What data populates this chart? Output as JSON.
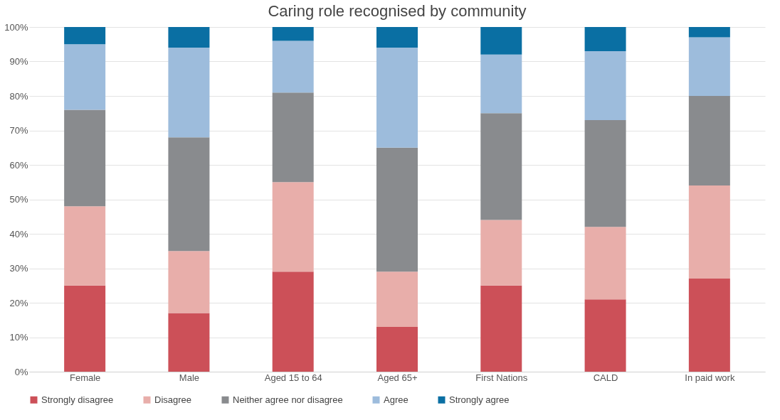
{
  "chart_data": {
    "type": "bar",
    "title": "Caring role recognised by community",
    "categories": [
      "Female",
      "Male",
      "Aged 15 to 64",
      "Aged 65+",
      "First Nations",
      "CALD",
      "In paid work"
    ],
    "stacked": true,
    "series": [
      {
        "name": "Strongly disagree",
        "color": "#cc5058",
        "values": [
          25,
          17,
          29,
          13,
          25,
          21,
          27
        ]
      },
      {
        "name": "Disagree",
        "color": "#e8aeaa",
        "values": [
          23,
          18,
          26,
          16,
          19,
          21,
          27
        ]
      },
      {
        "name": "Neither agree nor disagree",
        "color": "#898b8e",
        "values": [
          28,
          33,
          26,
          36,
          31,
          31,
          26
        ]
      },
      {
        "name": "Agree",
        "color": "#9dbcdc",
        "values": [
          19,
          26,
          15,
          29,
          17,
          20,
          17
        ]
      },
      {
        "name": "Strongly agree",
        "color": "#0a6fa3",
        "values": [
          5,
          6,
          4,
          6,
          8,
          7,
          3
        ]
      }
    ],
    "ylim": [
      0,
      100
    ],
    "yticks": [
      {
        "value": 0,
        "label": "0%"
      },
      {
        "value": 10,
        "label": "10%"
      },
      {
        "value": 20,
        "label": "20%"
      },
      {
        "value": 30,
        "label": "30%"
      },
      {
        "value": 40,
        "label": "40%"
      },
      {
        "value": 50,
        "label": "50%"
      },
      {
        "value": 60,
        "label": "60%"
      },
      {
        "value": 70,
        "label": "70%"
      },
      {
        "value": 80,
        "label": "80%"
      },
      {
        "value": 90,
        "label": "90%"
      },
      {
        "value": 100,
        "label": "100%"
      }
    ],
    "grid": "y",
    "legend": "bottom"
  }
}
